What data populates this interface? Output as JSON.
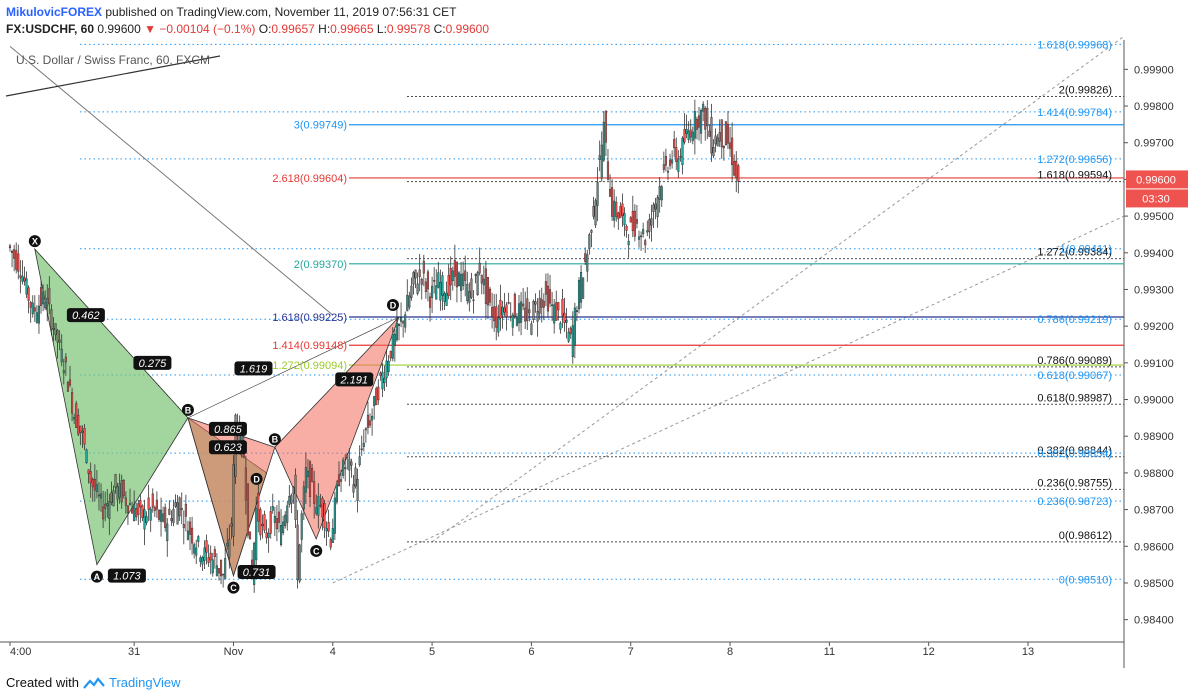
{
  "header": {
    "author": "MikulovicFOREX",
    "published": "published on TradingView.com, November 11, 2019 07:56:31 CET",
    "symbol": "FX:USDCHF, 60",
    "last": "0.99600",
    "change": "−0.00104 (−0.1%)",
    "o_label": "O:",
    "o_value": "0.99657",
    "h_label": "H:",
    "h_value": "0.99665",
    "l_label": "L:",
    "l_value": "0.99578",
    "c_label": "C:",
    "c_value": "0.99600"
  },
  "subtitle": "U.S. Dollar / Swiss Franc, 60, FXCM",
  "footer": {
    "created_with": "Created with",
    "brand": "TradingView"
  },
  "colors": {
    "bull": "#26a69a",
    "bear": "#ef5350",
    "green_pattern": "#7cc576",
    "red_pattern": "#f26b5b",
    "blue_fib": "#2196f3",
    "dark_line": "#111111",
    "red_line": "#e53935",
    "green_line": "#26a69a",
    "navy_line": "#283593",
    "olive_line": "#9ccc2c",
    "price_tag": "#ef5350"
  },
  "chart_data": {
    "type": "candlestick",
    "symbol": "USDCHF",
    "timeframe": "60",
    "ylim": [
      0.9835,
      0.9998
    ],
    "y_ticks": [
      "0.98400",
      "0.98500",
      "0.98600",
      "0.98700",
      "0.98800",
      "0.98900",
      "0.99000",
      "0.99100",
      "0.99200",
      "0.99300",
      "0.99400",
      "0.99500",
      "0.99600",
      "0.99700",
      "0.99800",
      "0.99900"
    ],
    "y_tick_values": [
      0.984,
      0.985,
      0.986,
      0.987,
      0.988,
      0.989,
      0.99,
      0.991,
      0.992,
      0.993,
      0.994,
      0.995,
      0.996,
      0.997,
      0.998,
      0.999
    ],
    "x_ticks": [
      "4:00",
      "31",
      "Nov",
      "4",
      "5",
      "6",
      "7",
      "8",
      "11",
      "12",
      "13"
    ],
    "x_tick_bars": [
      -72,
      -12,
      36,
      84,
      132,
      180,
      228,
      276,
      324,
      372,
      420
    ],
    "last_price": "0.99600",
    "last_price_value": 0.996,
    "countdown": "03:30",
    "price_path": [
      [
        -72,
        0.9942
      ],
      [
        -66,
        0.9936
      ],
      [
        -60,
        0.9924
      ],
      [
        -54,
        0.9928
      ],
      [
        -50,
        0.992
      ],
      [
        -44,
        0.9908
      ],
      [
        -40,
        0.9896
      ],
      [
        -36,
        0.989
      ],
      [
        -32,
        0.9878
      ],
      [
        -26,
        0.987
      ],
      [
        -20,
        0.9876
      ],
      [
        -14,
        0.9872
      ],
      [
        -8,
        0.9868
      ],
      [
        -2,
        0.987
      ],
      [
        4,
        0.9866
      ],
      [
        10,
        0.9872
      ],
      [
        16,
        0.9864
      ],
      [
        22,
        0.9858
      ],
      [
        28,
        0.9856
      ],
      [
        32,
        0.9852
      ],
      [
        36,
        0.9866
      ],
      [
        38,
        0.9895
      ],
      [
        42,
        0.9885
      ],
      [
        44,
        0.9866
      ],
      [
        46,
        0.9852
      ],
      [
        48,
        0.987
      ],
      [
        52,
        0.9862
      ],
      [
        56,
        0.9868
      ],
      [
        60,
        0.9864
      ],
      [
        64,
        0.9876
      ],
      [
        66,
        0.9876
      ],
      [
        68,
        0.9853
      ],
      [
        70,
        0.9868
      ],
      [
        72,
        0.988
      ],
      [
        76,
        0.9873
      ],
      [
        80,
        0.987
      ],
      [
        84,
        0.9862
      ],
      [
        88,
        0.9879
      ],
      [
        92,
        0.9883
      ],
      [
        96,
        0.9876
      ],
      [
        100,
        0.989
      ],
      [
        104,
        0.9896
      ],
      [
        108,
        0.9905
      ],
      [
        112,
        0.9912
      ],
      [
        116,
        0.9918
      ],
      [
        120,
        0.9924
      ],
      [
        124,
        0.9932
      ],
      [
        128,
        0.9934
      ],
      [
        132,
        0.9928
      ],
      [
        136,
        0.9932
      ],
      [
        140,
        0.993
      ],
      [
        144,
        0.9934
      ],
      [
        148,
        0.9932
      ],
      [
        152,
        0.9928
      ],
      [
        156,
        0.9936
      ],
      [
        160,
        0.9926
      ],
      [
        164,
        0.9922
      ],
      [
        168,
        0.9926
      ],
      [
        172,
        0.9924
      ],
      [
        176,
        0.9924
      ],
      [
        180,
        0.9922
      ],
      [
        184,
        0.9926
      ],
      [
        188,
        0.9928
      ],
      [
        192,
        0.9924
      ],
      [
        196,
        0.9922
      ],
      [
        200,
        0.9916
      ],
      [
        204,
        0.993
      ],
      [
        208,
        0.994
      ],
      [
        212,
        0.9956
      ],
      [
        216,
        0.9974
      ],
      [
        218,
        0.9962
      ],
      [
        220,
        0.9952
      ],
      [
        224,
        0.995
      ],
      [
        228,
        0.9946
      ],
      [
        232,
        0.9948
      ],
      [
        236,
        0.9944
      ],
      [
        240,
        0.9952
      ],
      [
        244,
        0.996
      ],
      [
        248,
        0.9966
      ],
      [
        252,
        0.9966
      ],
      [
        256,
        0.9972
      ],
      [
        260,
        0.9976
      ],
      [
        264,
        0.9978
      ],
      [
        268,
        0.997
      ],
      [
        272,
        0.9972
      ],
      [
        276,
        0.997
      ],
      [
        278,
        0.9966
      ],
      [
        280,
        0.996
      ]
    ],
    "harmonic_patterns": [
      {
        "name": "green",
        "points": {
          "X": 0.9941,
          "A": 0.9855,
          "B": 0.9895,
          "C": 0.9852,
          "D": 0.988
        },
        "labels": {
          "X": "X",
          "A": "A",
          "B": "B",
          "C": "C",
          "D": "D"
        },
        "ratios": [
          "0.462",
          "0.275",
          "0.865",
          "0.623",
          "1.073",
          "0.731"
        ]
      },
      {
        "name": "red",
        "points": {
          "X": 0.9895,
          "A": 0.9852,
          "B": 0.9887,
          "C": 0.9862,
          "D": 0.99225
        },
        "labels": {
          "B": "B",
          "D": "D",
          "C": "C"
        },
        "ratios": [
          "1.619",
          "2.191"
        ]
      }
    ],
    "left_levels": [
      {
        "label": "3(0.99749)",
        "value": 0.99749,
        "color": "#2196f3"
      },
      {
        "label": "2.618(0.99604)",
        "value": 0.99604,
        "color": "#e53935"
      },
      {
        "label": "2(0.99370)",
        "value": 0.9937,
        "color": "#26a69a"
      },
      {
        "label": "1.618(0.99225)",
        "value": 0.99225,
        "color": "#283593"
      },
      {
        "label": "1.414(0.99148)",
        "value": 0.99148,
        "color": "#e53935"
      },
      {
        "label": "1.272(0.99094)",
        "value": 0.99094,
        "color": "#9ccc2c"
      }
    ],
    "right_black_levels": [
      {
        "label": "2(0.99826)",
        "value": 0.99826
      },
      {
        "label": "1.618(0.99594)",
        "value": 0.99594
      },
      {
        "label": "1.272(0.99384)",
        "value": 0.99384
      },
      {
        "label": "0.786(0.99089)",
        "value": 0.99089
      },
      {
        "label": "0.618(0.98987)",
        "value": 0.98987
      },
      {
        "label": "0.382(0.98844)",
        "value": 0.98844
      },
      {
        "label": "0.236(0.98755)",
        "value": 0.98755
      },
      {
        "label": "0(0.98612)",
        "value": 0.98612
      }
    ],
    "right_blue_levels": [
      {
        "label": "1.618(0.99968)",
        "value": 0.99968
      },
      {
        "label": "1.414(0.99784)",
        "value": 0.99784
      },
      {
        "label": "1.272(0.99656)",
        "value": 0.99656
      },
      {
        "label": "1(0.99411)",
        "value": 0.99411
      },
      {
        "label": "0.786(0.99219)",
        "value": 0.99219
      },
      {
        "label": "0.618(0.99067)",
        "value": 0.99067
      },
      {
        "label": "0.382(0.98854)",
        "value": 0.98854
      },
      {
        "label": "0.236(0.98723)",
        "value": 0.98723
      },
      {
        "label": "0(0.98510)",
        "value": 0.9851
      }
    ]
  }
}
